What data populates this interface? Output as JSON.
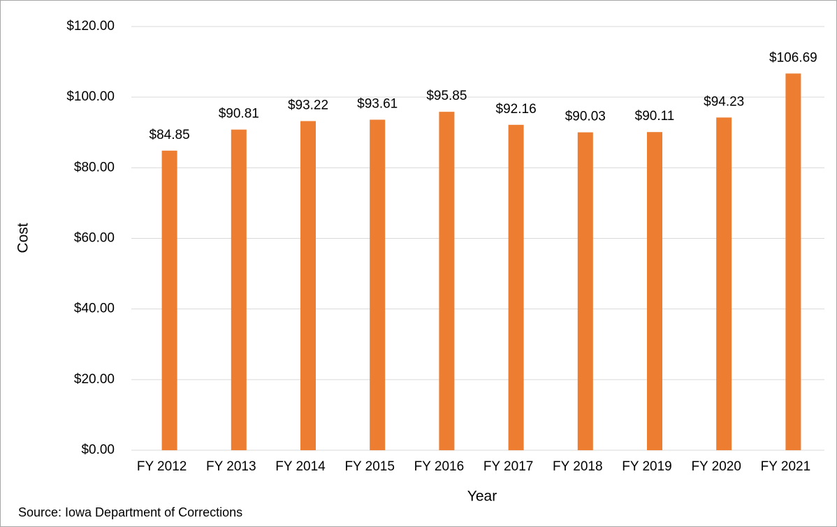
{
  "chart_data": {
    "type": "bar",
    "categories": [
      "FY 2012",
      "FY 2013",
      "FY 2014",
      "FY 2015",
      "FY 2016",
      "FY 2017",
      "FY 2018",
      "FY 2019",
      "FY 2020",
      "FY 2021"
    ],
    "values": [
      84.85,
      90.81,
      93.22,
      93.61,
      95.85,
      92.16,
      90.03,
      90.11,
      94.23,
      106.69
    ],
    "value_labels": [
      "$84.85",
      "$90.81",
      "$93.22",
      "$93.61",
      "$95.85",
      "$92.16",
      "$90.03",
      "$90.11",
      "$94.23",
      "$106.69"
    ],
    "color": "#ed7d31",
    "ylim": [
      0,
      120
    ],
    "yticks": [
      {
        "value": 0,
        "label": "$0.00"
      },
      {
        "value": 20,
        "label": "$20.00"
      },
      {
        "value": 40,
        "label": "$40.00"
      },
      {
        "value": 60,
        "label": "$60.00"
      },
      {
        "value": 80,
        "label": "$80.00"
      },
      {
        "value": 100,
        "label": "$100.00"
      },
      {
        "value": 120,
        "label": "$120.00"
      }
    ],
    "grid": true,
    "x_label": "Year",
    "y_label": "Cost",
    "annotation": "Source:  Iowa Department of Corrections"
  }
}
